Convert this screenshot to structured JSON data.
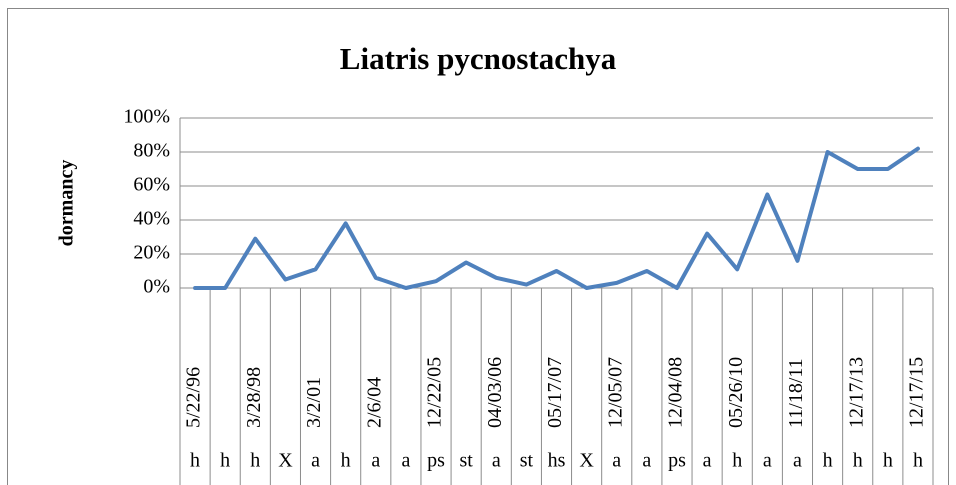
{
  "chart_data": {
    "type": "line",
    "title": "Liatris pycnostachya",
    "y_label": "dormancy",
    "categories": [
      "5/22/96",
      null,
      "3/28/98",
      null,
      "3/2/01",
      null,
      "2/6/04",
      null,
      "12/22/05",
      null,
      "04/03/06",
      null,
      "05/17/07",
      null,
      "12/05/07",
      null,
      "12/04/08",
      null,
      "05/26/10",
      null,
      "11/18/11",
      null,
      "12/17/13",
      null,
      "12/17/15"
    ],
    "groups": [
      "h",
      "h",
      "h",
      "X",
      "a",
      "h",
      "a",
      "a",
      "ps",
      "st",
      "a",
      "st",
      "hs",
      "X",
      "a",
      "a",
      "ps",
      "a",
      "h",
      "a",
      "a",
      "h",
      "h",
      "h",
      "h"
    ],
    "series": [
      {
        "color": "#4f81bd",
        "values": [
          0,
          0,
          29,
          5,
          11,
          38,
          6,
          0,
          4,
          15,
          6,
          2,
          10,
          0,
          3,
          10,
          0,
          32,
          11,
          55,
          16,
          80,
          70,
          70,
          82
        ]
      }
    ],
    "ylim": [
      0,
      100
    ],
    "yticks": [
      {
        "value": 0,
        "label": "0%"
      },
      {
        "value": 20,
        "label": "20%"
      },
      {
        "value": 40,
        "label": "40%"
      },
      {
        "value": 60,
        "label": "60%"
      },
      {
        "value": 80,
        "label": "80%"
      },
      {
        "value": 100,
        "label": "100%"
      }
    ],
    "grid": true
  }
}
